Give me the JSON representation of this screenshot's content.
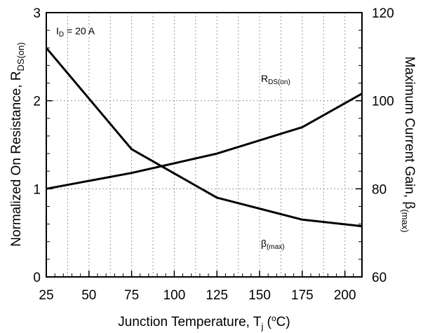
{
  "chart_data": {
    "type": "line",
    "xlabel_main": "Junction Temperature, T",
    "xlabel_sub": "j",
    "xlabel_open": " (",
    "xlabel_sup": "o",
    "xlabel_close": "C)",
    "ylabel_left_main": "Normalized On Resistance, R",
    "ylabel_left_sub": "DS(on)",
    "ylabel_right_main": "Maximum Current Gain,  β",
    "ylabel_right_sub": "(max)",
    "xlim": [
      25,
      210
    ],
    "ylim_left": [
      0,
      3
    ],
    "ylim_right": [
      60,
      120
    ],
    "x_ticks": [
      25,
      50,
      75,
      100,
      125,
      150,
      175,
      200
    ],
    "y_left_ticks": [
      0,
      1,
      2,
      3
    ],
    "y_right_ticks": [
      60,
      80,
      100,
      120
    ],
    "grid": true,
    "annotations": [
      {
        "id": "id",
        "main": "I",
        "sub": "D",
        "rest": " = 20 A"
      },
      {
        "id": "rds",
        "main": "R",
        "sub": "DS(on)",
        "rest": ""
      },
      {
        "id": "beta",
        "main": "β",
        "sub": "(max)",
        "rest": ""
      }
    ],
    "series": [
      {
        "id": "rds",
        "axis": "left",
        "x": [
          25,
          75,
          125,
          175,
          210
        ],
        "y": [
          1.0,
          1.18,
          1.4,
          1.7,
          2.08
        ]
      },
      {
        "id": "beta",
        "axis": "right",
        "x": [
          25,
          75,
          125,
          175,
          210
        ],
        "y": [
          112,
          89,
          78,
          73,
          71.5
        ]
      }
    ]
  }
}
